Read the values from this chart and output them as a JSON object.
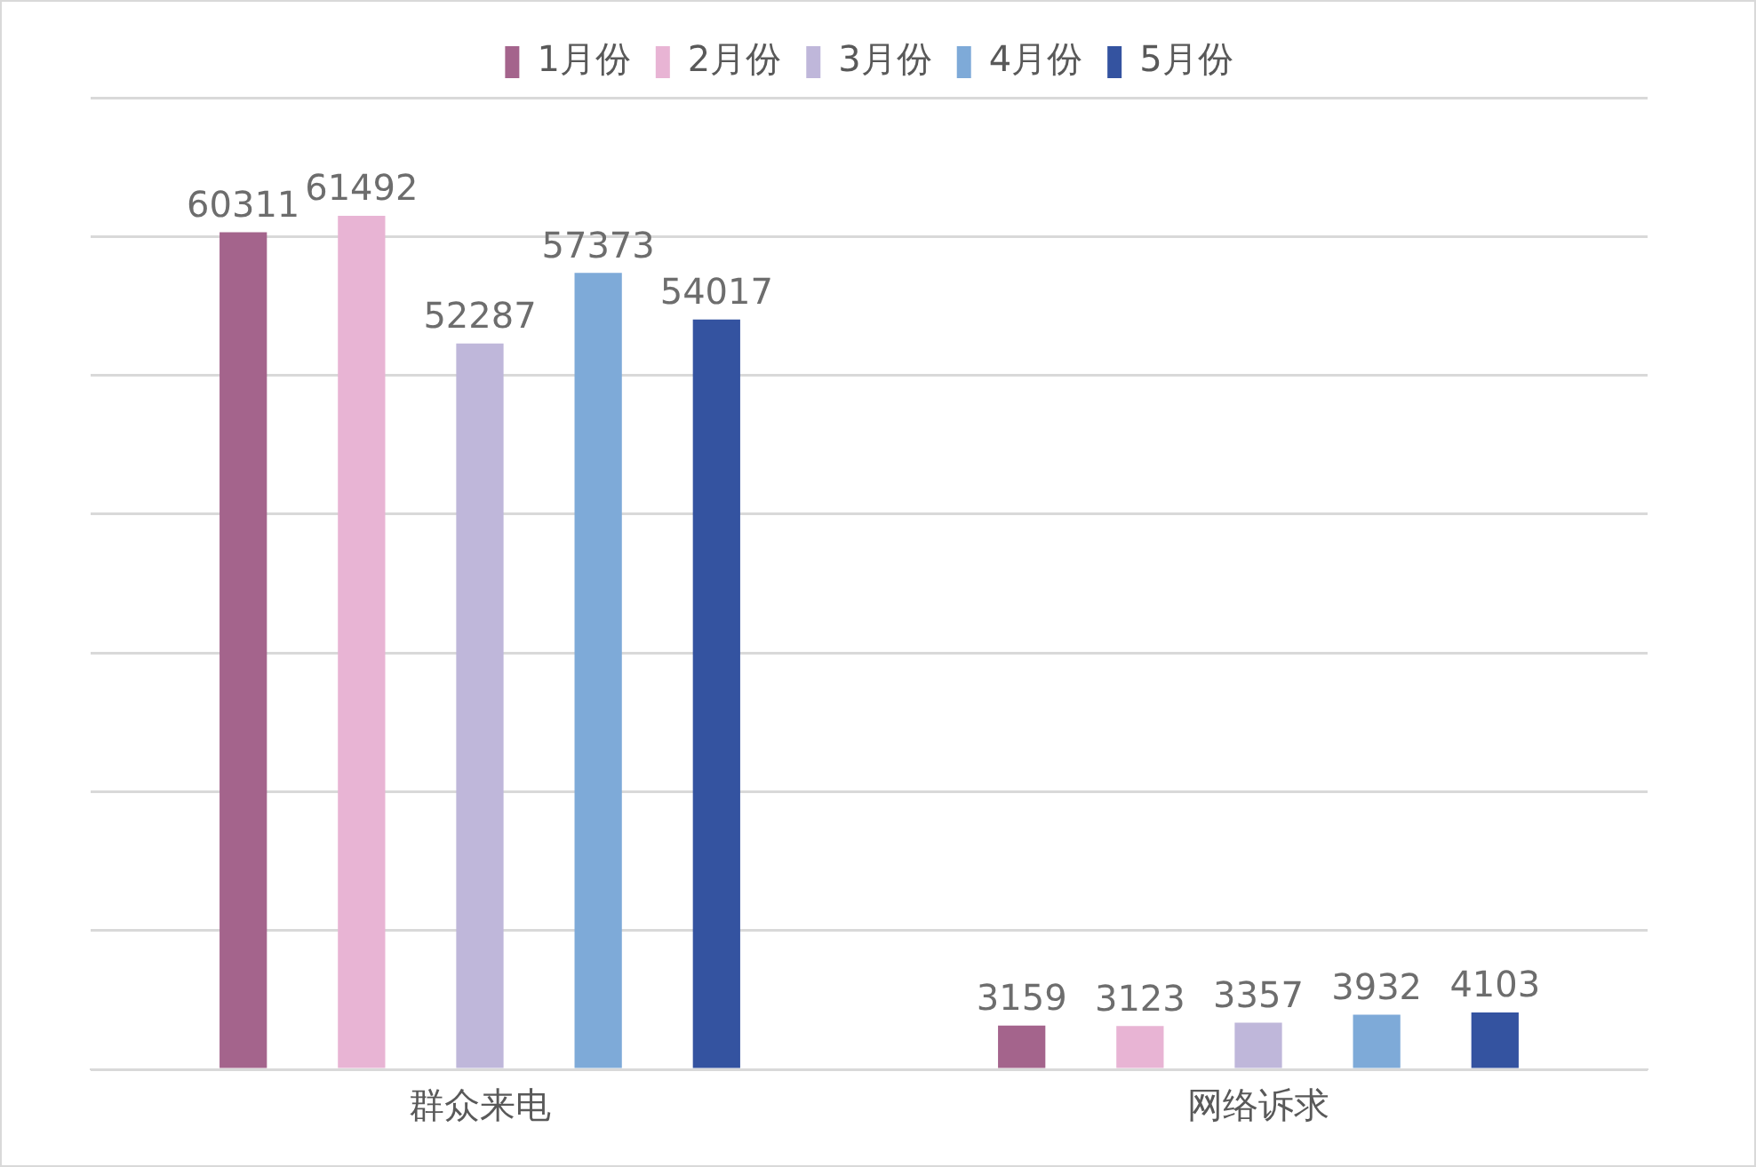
{
  "chart_data": {
    "type": "bar",
    "categories": [
      "群众来电",
      "网络诉求"
    ],
    "series": [
      {
        "name": "1月份",
        "color": "#a4648c",
        "values": [
          60311,
          3159
        ]
      },
      {
        "name": "2月份",
        "color": "#e8b4d4",
        "values": [
          61492,
          3123
        ]
      },
      {
        "name": "3月份",
        "color": "#bfb7da",
        "values": [
          52287,
          3357
        ]
      },
      {
        "name": "4月份",
        "color": "#7eaad8",
        "values": [
          57373,
          3932
        ]
      },
      {
        "name": "5月份",
        "color": "#3453a0",
        "values": [
          54017,
          4103
        ]
      }
    ],
    "ylim": [
      0,
      70000
    ],
    "yticks": [
      {
        "value": 0,
        "label": null
      },
      {
        "value": 10000,
        "label": null
      },
      {
        "value": 20000,
        "label": null
      },
      {
        "value": 30000,
        "label": null
      },
      {
        "value": 40000,
        "label": null
      },
      {
        "value": 50000,
        "label": null
      },
      {
        "value": 60000,
        "label": null
      },
      {
        "value": 70000,
        "label": null
      }
    ],
    "tick_labels": "x",
    "grid": "y",
    "legend": "top",
    "data_labels": true
  }
}
